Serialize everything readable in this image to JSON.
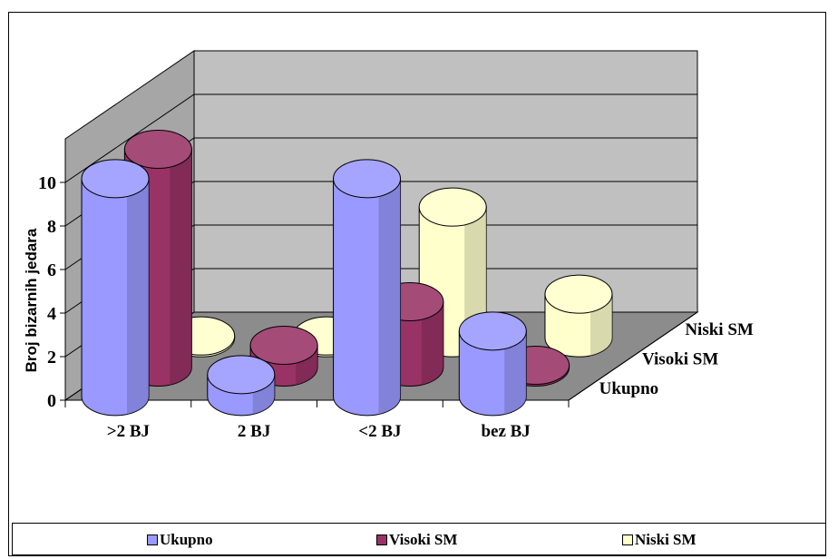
{
  "chart_data": {
    "type": "bar",
    "style": "3d-cylinder",
    "title": "",
    "xlabel": "",
    "ylabel": "Broj bizarnih jedara",
    "categories": [
      ">2 BJ",
      "2 BJ",
      "<2 BJ",
      "bez BJ"
    ],
    "series": [
      {
        "name": "Ukupno",
        "values": [
          10,
          1,
          10,
          3
        ],
        "color": "#9999ff"
      },
      {
        "name": "Visoki SM",
        "values": [
          10,
          1,
          3,
          0
        ],
        "color": "#993366"
      },
      {
        "name": "Niski SM",
        "values": [
          0,
          0,
          6,
          2
        ],
        "color": "#ffffcc"
      }
    ],
    "ylim": [
      0,
      10
    ],
    "yticks": [
      "0",
      "2",
      "4",
      "6",
      "8",
      "10"
    ],
    "grid": true,
    "legend": "bottom"
  },
  "legend": {
    "items": [
      {
        "label": "Ukupno",
        "color": "#9999ff"
      },
      {
        "label": "Visoki SM",
        "color": "#993366"
      },
      {
        "label": "Niski SM",
        "color": "#ffffcc"
      }
    ]
  }
}
